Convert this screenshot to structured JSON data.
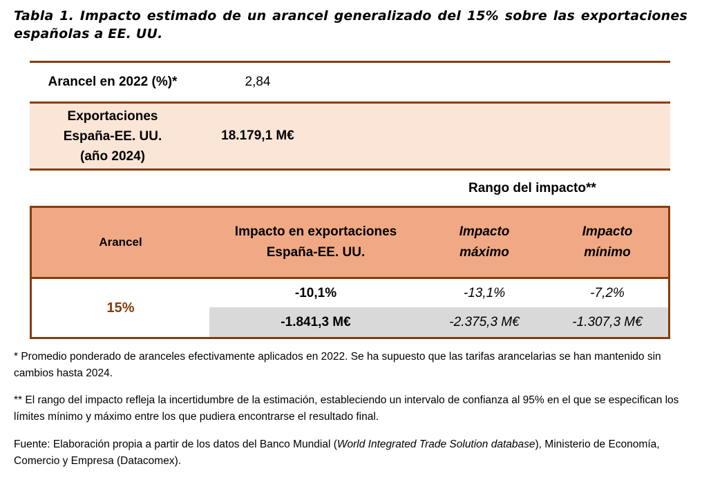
{
  "title": "Tabla 1. Impacto estimado de un arancel generalizado del 15% sobre las exportaciones españolas a EE. UU.",
  "summary": [
    {
      "label": "Arancel en 2022 (%)*",
      "value": "2,84"
    },
    {
      "label": "Exportaciones España-EE. UU. (año 2024)",
      "value": "18.179,1 M€"
    }
  ],
  "range_label": "Rango del impacto**",
  "table": {
    "headers": [
      "Arancel",
      "Impacto en exportaciones España-EE. UU.",
      "Impacto máximo",
      "Impacto mínimo"
    ],
    "tariff": "15%",
    "rows": [
      [
        "-10,1%",
        "-13,1%",
        "-7,2%"
      ],
      [
        "-1.841,3 M€",
        "-2.375,3 M€",
        "-1.307,3 M€"
      ]
    ]
  },
  "notes": {
    "n1": "* Promedio ponderado de aranceles efectivamente aplicados en 2022. Se ha supuesto que las tarifas arancelarias se han mantenido sin cambios hasta 2024.",
    "n2": "** El rango del impacto refleja la incertidumbre de la estimación, estableciendo un intervalo de confianza al 95% en el que se especifican los límites mínimo y máximo entre los que pudiera encontrarse el resultado final.",
    "source_a": "Fuente: Elaboración propia a partir de los datos del Banco Mundial (",
    "source_b": "World Integrated Trade Solution database",
    "source_c": "), Ministerio de Economía, Comercio y Empresa (Datacomex)."
  },
  "colors": {
    "border": "#843c0c",
    "header_bg": "#f0a984",
    "light_bg": "#fbe5d6",
    "gray": "#d9d9d9"
  }
}
